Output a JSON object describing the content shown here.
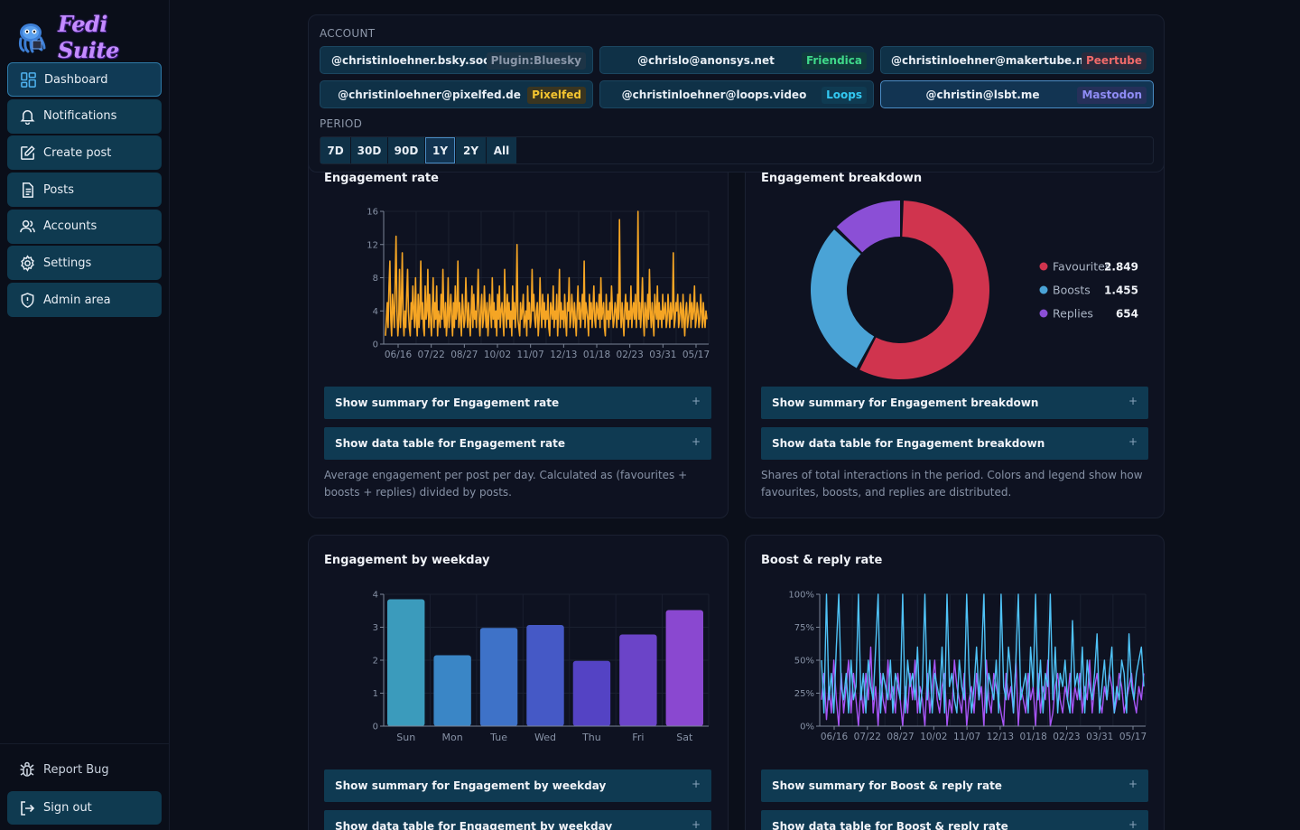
{
  "app": {
    "logo_text": "Fedi Suite"
  },
  "sidebar": {
    "items": [
      {
        "label": "Dashboard",
        "icon": "dashboard-icon",
        "active": true
      },
      {
        "label": "Notifications",
        "icon": "bell-icon"
      },
      {
        "label": "Create post",
        "icon": "edit-icon"
      },
      {
        "label": "Posts",
        "icon": "document-icon"
      },
      {
        "label": "Accounts",
        "icon": "users-icon"
      },
      {
        "label": "Settings",
        "icon": "gear-icon"
      },
      {
        "label": "Admin area",
        "icon": "shield-icon"
      }
    ],
    "report_bug": "Report Bug",
    "sign_out": "Sign out"
  },
  "filters": {
    "account_label": "ACCOUNT",
    "accounts": [
      {
        "handle": "@christinloehner.bsky.social",
        "platform": "Plugin:Bluesky",
        "badge_color": "#8a96a8",
        "badge_bg": "#1d3446"
      },
      {
        "handle": "@chrislo@anonsys.net",
        "platform": "Friendica",
        "badge_color": "#3fd98a",
        "badge_bg": "#103b3c"
      },
      {
        "handle": "@christinloehner@makertube.net",
        "platform": "Peertube",
        "badge_color": "#f06a6a",
        "badge_bg": "#2a2a3c"
      },
      {
        "handle": "@christinloehner@pixelfed.de",
        "platform": "Pixelfed",
        "badge_color": "#f4c430",
        "badge_bg": "#3a3520"
      },
      {
        "handle": "@christinloehner@loops.video",
        "platform": "Loops",
        "badge_color": "#33c9f2",
        "badge_bg": "#0f3b52"
      },
      {
        "handle": "@christin@lsbt.me",
        "platform": "Mastodon",
        "badge_color": "#8f8cf5",
        "badge_bg": "#26305a",
        "active": true
      }
    ],
    "period_label": "PERIOD",
    "periods": [
      "7D",
      "30D",
      "90D",
      "1Y",
      "2Y",
      "All"
    ],
    "active_period": "1Y"
  },
  "cards": {
    "engagement_rate": {
      "title": "Engagement rate",
      "summary_toggle": "Show summary for Engagement rate",
      "table_toggle": "Show data table for Engagement rate",
      "description": "Average engagement per post per day. Calculated as (favourites + boosts + replies) divided by posts."
    },
    "engagement_breakdown": {
      "title": "Engagement breakdown",
      "summary_toggle": "Show summary for Engagement breakdown",
      "table_toggle": "Show data table for Engagement breakdown",
      "description": "Shares of total interactions in the period. Colors and legend show how favourites, boosts, and replies are distributed."
    },
    "engagement_weekday": {
      "title": "Engagement by weekday",
      "summary_toggle": "Show summary for Engagement by weekday",
      "table_toggle": "Show data table for Engagement by weekday"
    },
    "boost_reply": {
      "title": "Boost & reply rate",
      "summary_toggle": "Show summary for Boost & reply rate",
      "table_toggle": "Show data table for Boost & reply rate"
    },
    "plus_icon": "+"
  },
  "chart_data": [
    {
      "type": "line",
      "title": "Engagement rate",
      "color": "#f5a524",
      "x_ticks": [
        "06/16",
        "07/22",
        "08/27",
        "10/02",
        "11/07",
        "12/13",
        "01/18",
        "02/23",
        "03/31",
        "05/17"
      ],
      "y_ticks": [
        0,
        4,
        8,
        12,
        16
      ],
      "ylim": [
        0,
        16
      ],
      "values": [
        1,
        3,
        5,
        2,
        7,
        10,
        3,
        1,
        6,
        4,
        2,
        8,
        13,
        4,
        1,
        3,
        9,
        2,
        5,
        11,
        3,
        1,
        4,
        2,
        6,
        9,
        4,
        2,
        1,
        5,
        3,
        7,
        4,
        2,
        8,
        3,
        1,
        6,
        2,
        4,
        10,
        3,
        5,
        2,
        1,
        7,
        3,
        4,
        9,
        2,
        6,
        3,
        1,
        4,
        8,
        2,
        5,
        3,
        7,
        1,
        4,
        3,
        2,
        6,
        3,
        9,
        4,
        2,
        5,
        1,
        3,
        8,
        2,
        4,
        6,
        3,
        1,
        5,
        2,
        7,
        3,
        4,
        10,
        2,
        5,
        3,
        1,
        6,
        4,
        2,
        3,
        8,
        4,
        2,
        5,
        3,
        1,
        4,
        7,
        2,
        6,
        3,
        4,
        2,
        5,
        9,
        3,
        1,
        4,
        6,
        2,
        3,
        7,
        4,
        2,
        5,
        1,
        3,
        6,
        4,
        2,
        8,
        3,
        5,
        2,
        4,
        1,
        6,
        3,
        7,
        2,
        4,
        5,
        3,
        1,
        9,
        4,
        2,
        6,
        3,
        5,
        2,
        4,
        1,
        7,
        3,
        5,
        2,
        4,
        12,
        3,
        2,
        1,
        5,
        3,
        4,
        6,
        2,
        3,
        4,
        1,
        7,
        3,
        5,
        2,
        3,
        9,
        4,
        6,
        3,
        2,
        4,
        5,
        1,
        3,
        8,
        4,
        2,
        6,
        3,
        5,
        2,
        4,
        3,
        6,
        2,
        1,
        5,
        4,
        3,
        7,
        2,
        4,
        3,
        6,
        1,
        4,
        9,
        2,
        5,
        3,
        4,
        2,
        6,
        3,
        1,
        5,
        4,
        8,
        2,
        3,
        6,
        4,
        2,
        5,
        3,
        1,
        4,
        7,
        3,
        5,
        2,
        4,
        6,
        3,
        10,
        2,
        5,
        4,
        3,
        1,
        6,
        3,
        5,
        2,
        4,
        7,
        3,
        2,
        5,
        4,
        3,
        6,
        2,
        8,
        3,
        4,
        5,
        2,
        1,
        6,
        3,
        4,
        2,
        5,
        3,
        7,
        4,
        2,
        3,
        5,
        4,
        2,
        6,
        3,
        15,
        4,
        2,
        5,
        3,
        1,
        4,
        6,
        3,
        5,
        2,
        4,
        3,
        7,
        2,
        4,
        5,
        3,
        6,
        2,
        4,
        16,
        3,
        5,
        2,
        4,
        8,
        3,
        1,
        5,
        4,
        2,
        6,
        3,
        9,
        4,
        2,
        5,
        3,
        1,
        6,
        4,
        3,
        7,
        2,
        5,
        3,
        4,
        2,
        6,
        3,
        4,
        5,
        2,
        3,
        6,
        4,
        2,
        5,
        3,
        4,
        11,
        2,
        3,
        5,
        4,
        6,
        2,
        3,
        5,
        4,
        2,
        6,
        3,
        1,
        4,
        5,
        2,
        3,
        4,
        6,
        2,
        5,
        3,
        4,
        7,
        2,
        3,
        5,
        4,
        2,
        3,
        6,
        4,
        2,
        5,
        3,
        2,
        4,
        3
      ]
    },
    {
      "type": "pie",
      "title": "Engagement breakdown",
      "donut": true,
      "legend_position": "right",
      "slices": [
        {
          "name": "Favourites",
          "value": 2849,
          "label": "2.849",
          "color": "#d0344e"
        },
        {
          "name": "Boosts",
          "value": 1455,
          "label": "1.455",
          "color": "#4aa3d6"
        },
        {
          "name": "Replies",
          "value": 654,
          "label": "654",
          "color": "#8b4fd6"
        }
      ]
    },
    {
      "type": "bar",
      "title": "Engagement by weekday",
      "categories": [
        "Sun",
        "Mon",
        "Tue",
        "Wed",
        "Thu",
        "Fri",
        "Sat"
      ],
      "values": [
        3.85,
        2.15,
        2.98,
        3.07,
        1.98,
        2.78,
        3.52
      ],
      "colors": [
        "#3b9bbc",
        "#3a86c6",
        "#3e72c8",
        "#4559c6",
        "#5443c4",
        "#6b44c8",
        "#8a48d0"
      ],
      "ylim": [
        0,
        4
      ],
      "y_ticks": [
        0,
        1,
        2,
        3,
        4
      ]
    },
    {
      "type": "line",
      "title": "Boost & reply rate",
      "x_ticks": [
        "06/16",
        "07/22",
        "08/27",
        "10/02",
        "11/07",
        "12/13",
        "01/18",
        "02/23",
        "03/31",
        "05/17"
      ],
      "y_ticks": [
        "0%",
        "25%",
        "50%",
        "75%",
        "100%"
      ],
      "ylim": [
        0,
        100
      ],
      "series": [
        {
          "color": "#4fc3f7",
          "values": [
            50,
            10,
            100,
            20,
            40,
            10,
            60,
            100,
            30,
            20,
            40,
            10,
            50,
            20,
            30,
            100,
            20,
            40,
            10,
            50,
            30,
            20,
            60,
            100,
            10,
            40,
            30,
            20,
            50,
            10,
            40,
            30,
            20,
            100,
            10,
            50,
            30,
            40,
            20,
            60,
            10,
            30,
            100,
            20,
            50,
            10,
            40,
            30,
            20,
            60,
            10,
            100,
            30,
            40,
            20,
            10,
            50,
            30,
            20,
            100,
            40,
            10,
            30,
            60,
            20,
            50,
            100,
            10,
            40,
            30,
            20,
            50,
            10,
            100,
            30,
            20,
            60,
            40,
            10,
            50,
            100,
            20,
            30,
            40,
            10,
            60,
            30,
            100,
            20,
            50,
            10,
            40,
            30,
            100,
            20,
            60,
            10,
            40,
            30,
            50,
            20,
            10,
            80,
            30,
            40,
            20,
            60,
            10,
            50,
            30,
            20,
            40,
            70,
            10,
            30,
            50,
            20,
            40,
            60,
            10,
            30,
            20,
            50,
            40,
            10,
            70,
            30,
            20,
            40,
            50,
            60,
            30
          ]
        },
        {
          "color": "#a855f7",
          "values": [
            20,
            40,
            5,
            30,
            10,
            50,
            20,
            0,
            40,
            10,
            30,
            50,
            10,
            40,
            20,
            0,
            30,
            10,
            40,
            20,
            60,
            10,
            30,
            0,
            40,
            20,
            10,
            50,
            20,
            30,
            10,
            40,
            20,
            0,
            30,
            10,
            40,
            20,
            50,
            10,
            30,
            20,
            0,
            40,
            10,
            30,
            50,
            20,
            10,
            30,
            40,
            0,
            20,
            10,
            50,
            30,
            20,
            10,
            40,
            0,
            20,
            30,
            10,
            40,
            20,
            30,
            0,
            50,
            20,
            10,
            40,
            30,
            20,
            10,
            0,
            40,
            20,
            30,
            10,
            50,
            0,
            30,
            20,
            10,
            40,
            20,
            30,
            0,
            40,
            10,
            30,
            20,
            50,
            0,
            10,
            30,
            40,
            20,
            10,
            30,
            20,
            40,
            10,
            30,
            20,
            40,
            10,
            30,
            20,
            50,
            10,
            30,
            40,
            20,
            10,
            30,
            20,
            40,
            30,
            10,
            20,
            40,
            30,
            10,
            20,
            30,
            40,
            20,
            10,
            30,
            20,
            40
          ]
        }
      ]
    }
  ]
}
